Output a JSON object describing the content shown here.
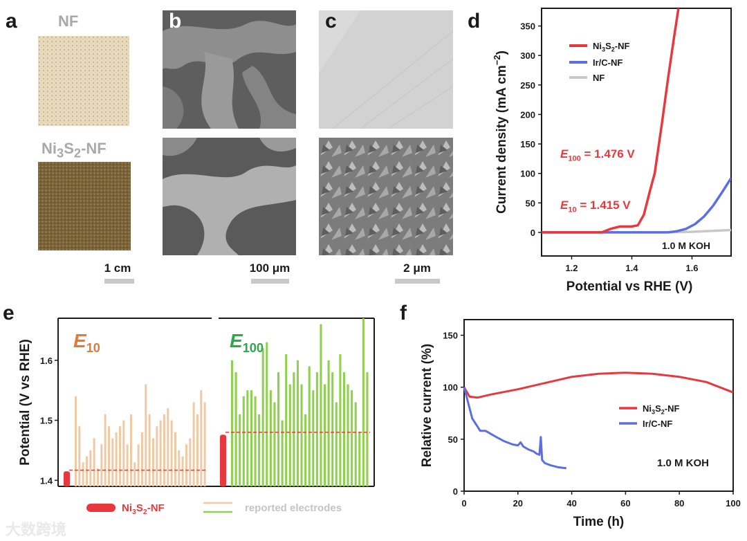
{
  "panels": {
    "a": {
      "letter": "a",
      "top_label": "NF",
      "bottom_label_html": "Ni<sub>3</sub>S<sub>2</sub>-NF",
      "scale": "1 cm"
    },
    "b": {
      "letter": "b",
      "scale": "100 μm"
    },
    "c": {
      "letter": "c",
      "scale": "2 μm"
    },
    "d": {
      "letter": "d"
    },
    "e": {
      "letter": "e"
    },
    "f": {
      "letter": "f"
    }
  },
  "chart_data": [
    {
      "id": "d",
      "type": "line",
      "xlabel": "Potential vs RHE (V)",
      "ylabel": "Current density (mA cm⁻²)",
      "xlim": [
        1.1,
        1.73
      ],
      "ylim": [
        -40,
        380
      ],
      "xticks": [
        1.2,
        1.4,
        1.6
      ],
      "yticks": [
        0,
        50,
        100,
        150,
        200,
        250,
        300,
        350
      ],
      "legend_position": "top-left",
      "series": [
        {
          "name": "Ni3S2-NF",
          "color": "#e8383d",
          "x": [
            1.1,
            1.3,
            1.33,
            1.36,
            1.4,
            1.42,
            1.44,
            1.46,
            1.476,
            1.5,
            1.52,
            1.54,
            1.555
          ],
          "y": [
            0,
            0,
            6,
            10,
            10,
            12,
            30,
            70,
            100,
            185,
            260,
            330,
            380
          ]
        },
        {
          "name": "Ir/C-NF",
          "color": "#5b6fe0",
          "x": [
            1.1,
            1.52,
            1.55,
            1.58,
            1.61,
            1.64,
            1.67,
            1.7,
            1.73
          ],
          "y": [
            0,
            0,
            2,
            6,
            14,
            27,
            45,
            68,
            92
          ]
        },
        {
          "name": "NF",
          "color": "#c8c8c8",
          "x": [
            1.1,
            1.5,
            1.6,
            1.73
          ],
          "y": [
            0,
            0,
            1,
            4
          ]
        }
      ],
      "annotations": [
        {
          "text_sym": "E",
          "text_sub": "100",
          "text_rest": " = 1.476 V",
          "color": "#e8383d"
        },
        {
          "text_sym": "E",
          "text_sub": "10",
          "text_rest": " = 1.415 V",
          "color": "#e8383d"
        },
        {
          "text": "1.0 M KOH"
        }
      ]
    },
    {
      "id": "e",
      "type": "bar",
      "ylabel": "Potential (V vs RHE)",
      "ylim": [
        1.39,
        1.67
      ],
      "yticks": [
        1.4,
        1.5,
        1.6
      ],
      "groups": [
        {
          "label_sym": "E",
          "label_sub": "10",
          "color": "#e07b3a",
          "bar_color": "#f2c8a0",
          "ni3s2_value": 1.415,
          "reference_line": 1.417,
          "reported": [
            1.54,
            1.49,
            1.43,
            1.44,
            1.45,
            1.47,
            1.42,
            1.46,
            1.51,
            1.49,
            1.47,
            1.48,
            1.49,
            1.5,
            1.46,
            1.51,
            1.43,
            1.46,
            1.48,
            1.56,
            1.51,
            1.47,
            1.49,
            1.5,
            1.51,
            1.52,
            1.5,
            1.48,
            1.45,
            1.44,
            1.46,
            1.47,
            1.53,
            1.51,
            1.55,
            1.53
          ]
        },
        {
          "label_sym": "E",
          "label_sub": "100",
          "color": "#2ea84a",
          "bar_color": "#8fd14f",
          "ni3s2_value": 1.476,
          "reference_line": 1.48,
          "reported": [
            1.6,
            1.58,
            1.51,
            1.54,
            1.55,
            1.55,
            1.54,
            1.51,
            1.62,
            1.63,
            1.55,
            1.53,
            1.58,
            1.5,
            1.61,
            1.56,
            1.58,
            1.6,
            1.56,
            1.51,
            1.59,
            1.55,
            1.58,
            1.66,
            1.56,
            1.6,
            1.58,
            1.53,
            1.61,
            1.58,
            1.56,
            1.55,
            1.53,
            1.48,
            1.67,
            1.58
          ]
        }
      ],
      "legend": [
        {
          "label": "Ni3S2-NF",
          "color": "#e8383d"
        },
        {
          "label": "reported electrodes"
        }
      ]
    },
    {
      "id": "f",
      "type": "line",
      "xlabel": "Time (h)",
      "ylabel": "Relative current (%)",
      "xlim": [
        0,
        100
      ],
      "ylim": [
        0,
        165
      ],
      "xticks": [
        0,
        20,
        40,
        60,
        80,
        100
      ],
      "yticks": [
        0,
        50,
        100,
        150
      ],
      "legend_position": "center-right",
      "series": [
        {
          "name": "Ni3S2-NF",
          "color": "#e8383d",
          "x": [
            0,
            2,
            5,
            10,
            20,
            30,
            40,
            50,
            60,
            70,
            80,
            90,
            95,
            100
          ],
          "y": [
            100,
            91,
            90,
            93,
            98,
            104,
            110,
            113,
            114,
            113,
            110,
            105,
            100,
            95
          ]
        },
        {
          "name": "Ir/C-NF",
          "color": "#5b6fe0",
          "x": [
            0,
            1,
            2,
            3,
            5,
            6,
            8,
            10,
            12,
            15,
            18,
            20,
            21,
            22,
            24,
            26,
            27,
            28,
            28.5,
            29,
            30,
            32,
            35,
            38
          ],
          "y": [
            100,
            90,
            80,
            70,
            62,
            58,
            58,
            55,
            52,
            48,
            45,
            44,
            47,
            43,
            40,
            38,
            36,
            35,
            52,
            30,
            27,
            25,
            23,
            22
          ]
        }
      ],
      "annotations": [
        {
          "text": "1.0 M KOH"
        }
      ]
    }
  ],
  "legend_labels": {
    "ni3s2_html": "Ni<sub>3</sub>S<sub>2</sub>-NF",
    "irc": "Ir/C-NF",
    "nf": "NF"
  },
  "watermark": "大数跨境"
}
